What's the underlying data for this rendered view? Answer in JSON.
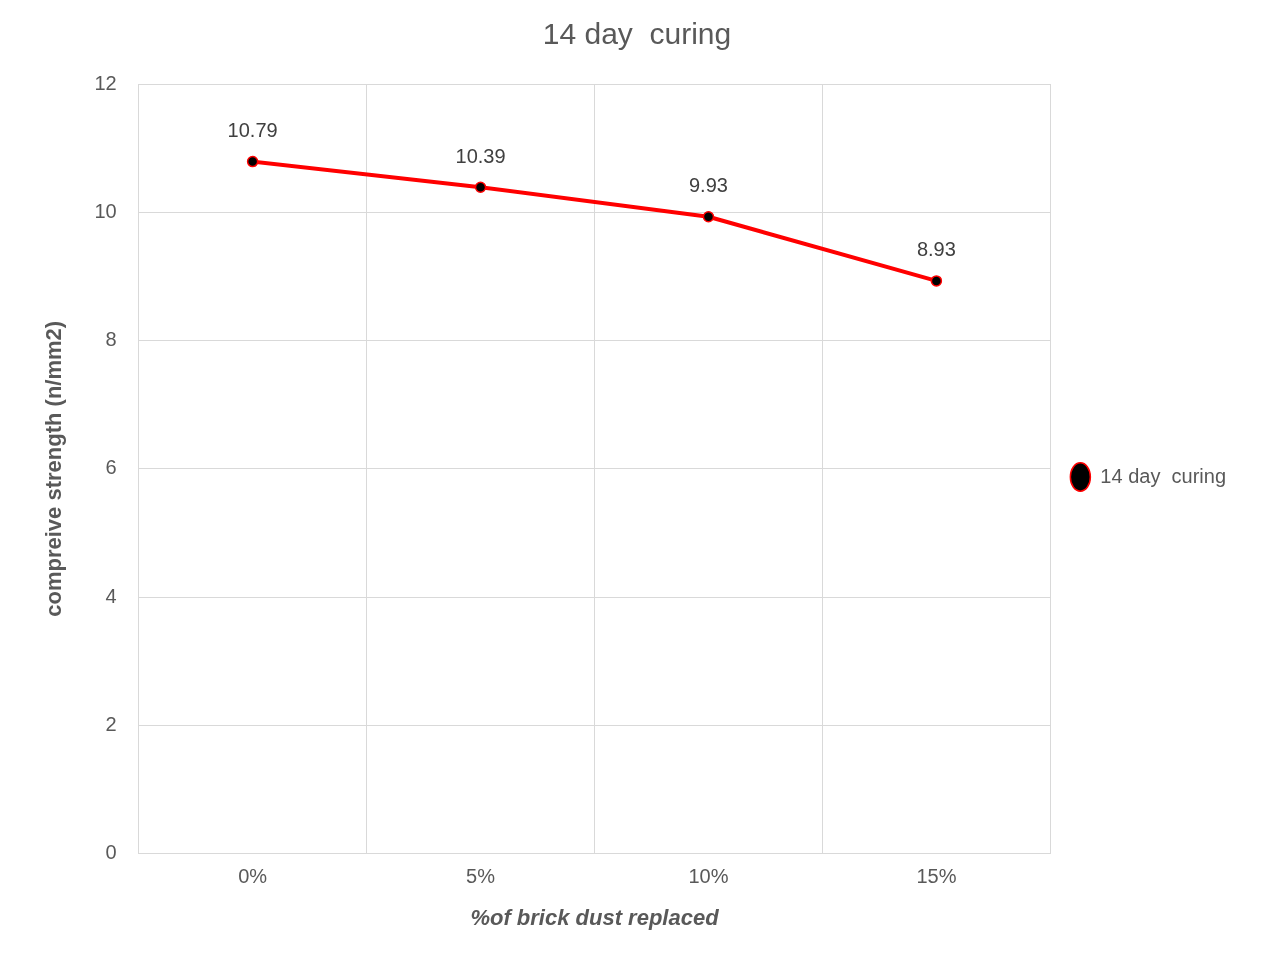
{
  "chart_data": {
    "type": "line",
    "title": "14 day  curing",
    "xlabel": "%of brick dust replaced",
    "ylabel": "compreive strength (n/mm2)",
    "categories": [
      "0%",
      "5%",
      "10%",
      "15%"
    ],
    "series": [
      {
        "name": "14 day  curing",
        "color": "#ff0000",
        "values": [
          10.79,
          10.39,
          9.93,
          8.93
        ]
      }
    ],
    "ylim": [
      0,
      12
    ],
    "yticks": [
      0,
      2,
      4,
      6,
      8,
      10,
      12
    ],
    "grid": true,
    "legend": "right",
    "marker": "circle",
    "data_labels": true
  }
}
